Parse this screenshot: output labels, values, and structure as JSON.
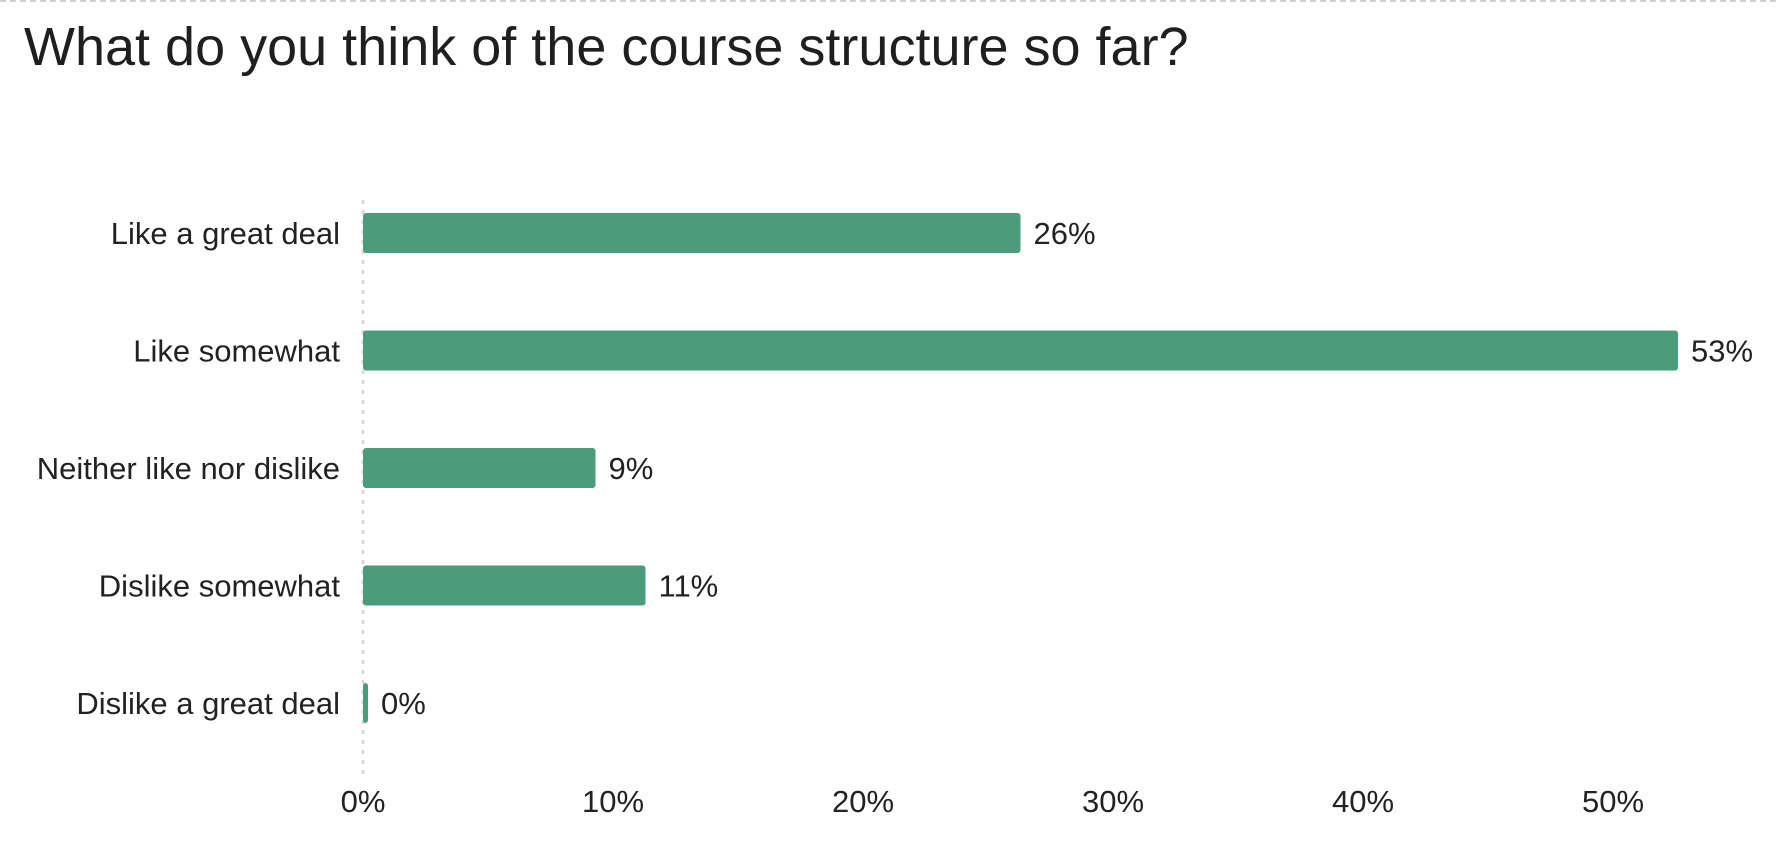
{
  "title": "What do you think of the course structure so far?",
  "chart_data": {
    "type": "bar",
    "orientation": "horizontal",
    "title": "What do you think of the course structure so far?",
    "categories": [
      "Like a great deal",
      "Like somewhat",
      "Neither like nor dislike",
      "Dislike somewhat",
      "Dislike a great deal"
    ],
    "values": [
      26.3,
      52.6,
      9.3,
      11.3,
      0.2
    ],
    "value_labels": [
      "26%",
      "53%",
      "9%",
      "11%",
      "0%"
    ],
    "xlim": [
      0,
      55
    ],
    "x_ticks": [
      0,
      10,
      20,
      30,
      40,
      50
    ],
    "x_tick_labels": [
      "0%",
      "10%",
      "20%",
      "30%",
      "40%",
      "50%"
    ],
    "xlabel": "",
    "ylabel": "",
    "bar_color": "#4a9c7a",
    "grid": false,
    "legend": "none"
  }
}
